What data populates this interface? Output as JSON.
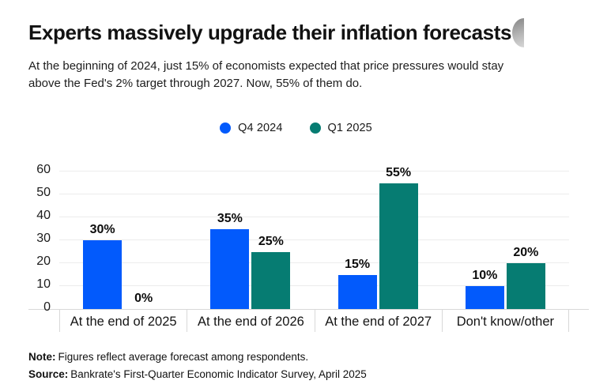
{
  "header": {
    "title": "Experts massively upgrade their inflation forecasts",
    "subtitle_line1": "At the beginning of 2024, just 15% of economists expected that price pressures would stay",
    "subtitle_line2": "above the Fed's 2% target through 2027. Now, 55% of them do."
  },
  "footer": {
    "note_label": "Note:",
    "note_text": "Figures reflect average forecast among respondents.",
    "source_label": "Source:",
    "source_text": "Bankrate's First-Quarter Economic Indicator Survey, April 2025"
  },
  "colors": {
    "q4_2024_blue": "#025afc",
    "q1_2025_teal": "#067c72",
    "gridline": "#ececec",
    "axis_border": "#d8d8d8",
    "text": "#171717",
    "title_shape_gray": "#8d8d8d"
  },
  "chart_data": {
    "type": "bar",
    "title": "Experts massively upgrade their inflation forecasts",
    "categories": [
      "At the end of 2025",
      "At the end of 2026",
      "At the end of 2027",
      "Don't know/other"
    ],
    "series": [
      {
        "name": "Q4 2024",
        "color": "#025afc",
        "values": [
          30,
          35,
          15,
          10
        ],
        "labels": [
          "30%",
          "35%",
          "15%",
          "10%"
        ]
      },
      {
        "name": "Q1 2025",
        "color": "#067c72",
        "values": [
          0,
          25,
          55,
          20
        ],
        "labels": [
          "0%",
          "25%",
          "55%",
          "20%"
        ]
      }
    ],
    "xlabel": "",
    "ylabel": "",
    "ylim": [
      0,
      60
    ],
    "yticks": [
      0,
      10,
      20,
      30,
      40,
      50,
      60
    ],
    "grid": true,
    "legend_position": "top-center",
    "value_label_suffix": "%"
  }
}
